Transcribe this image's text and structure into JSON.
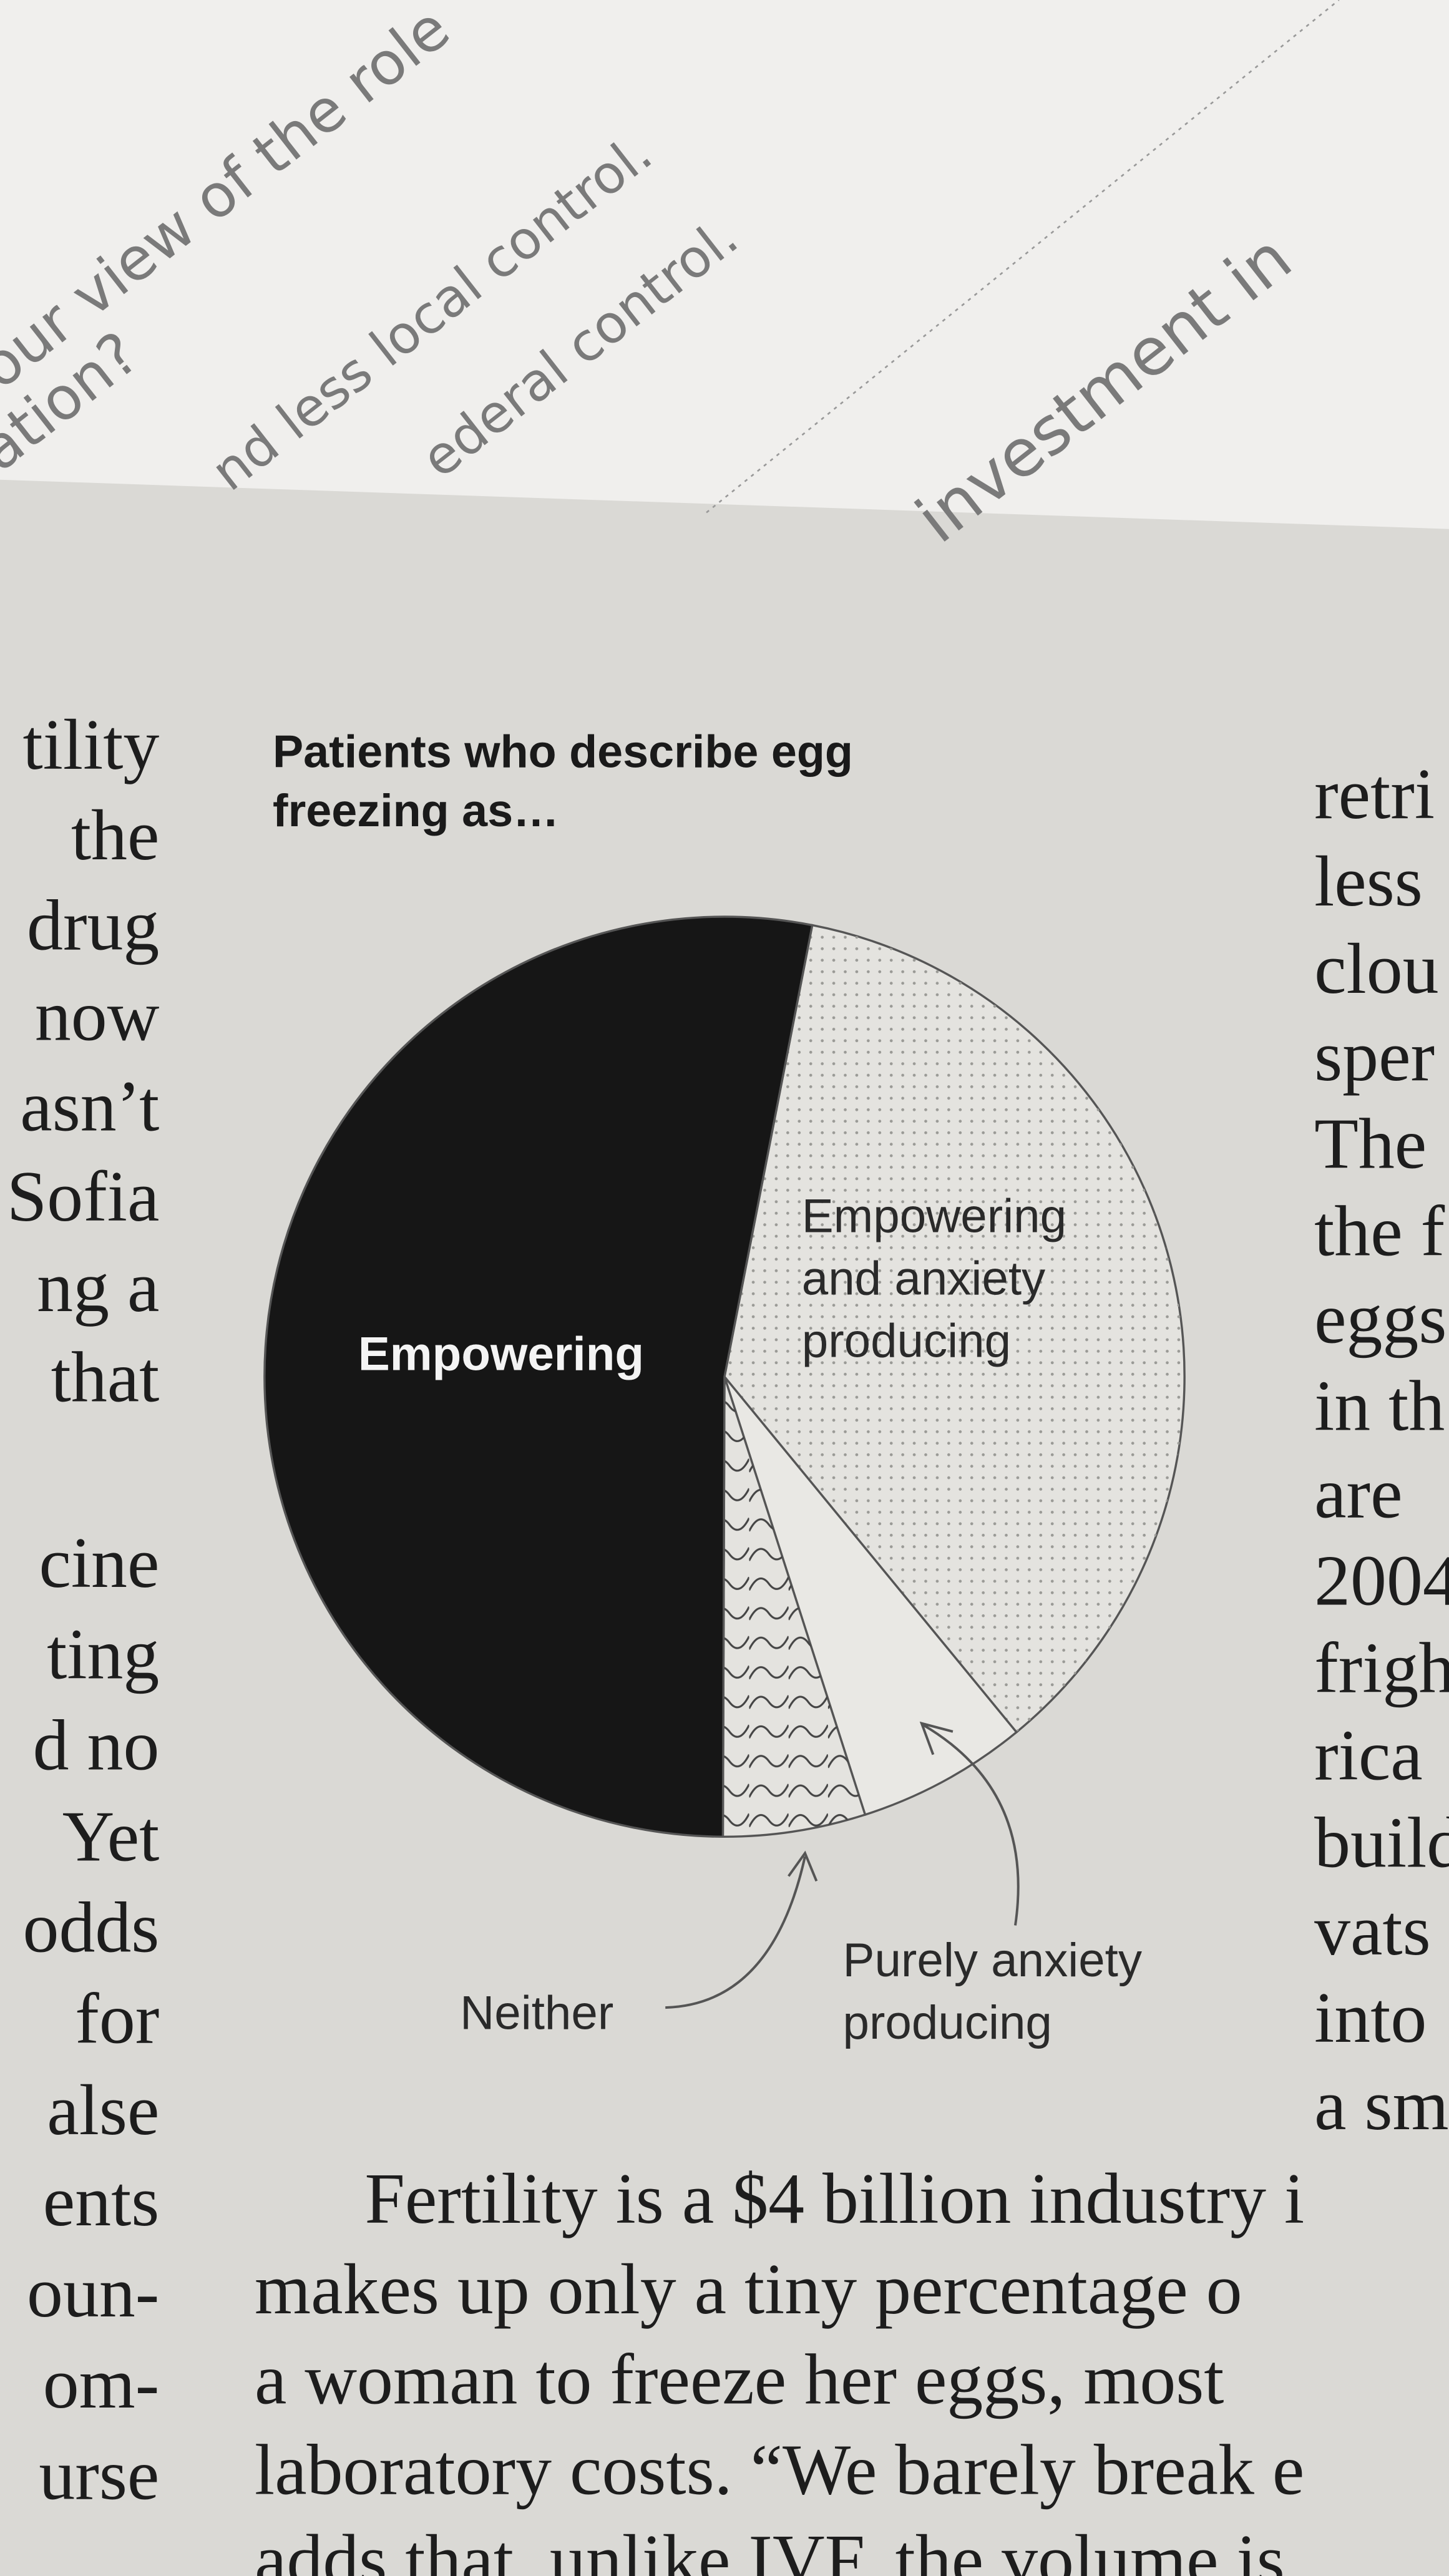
{
  "chart_data": {
    "type": "pie",
    "title": "Patients who describe egg freezing as…",
    "categories": [
      "Empowering and anxiety producing",
      "Purely anxiety producing",
      "Neither",
      "Empowering"
    ],
    "values": [
      36,
      6,
      5,
      53
    ],
    "colors": [
      "#e4e3df",
      "#e9e8e4",
      "#e4e3df",
      "#161616"
    ],
    "patterns": [
      "dots",
      "none",
      "waves",
      "none"
    ]
  },
  "background_paper": [
    "our view of the role",
    "ation?",
    "nd less local control.",
    "ederal control.",
    "investment in"
  ],
  "article": {
    "left_column": [
      "tility",
      "the",
      "drug",
      "now",
      "asn’t",
      "Sofia",
      "ng a",
      "that",
      "cine",
      "ting",
      "d no",
      "Yet",
      "odds",
      "for",
      "alse",
      "ents",
      "oun-",
      "om-",
      "urse"
    ],
    "right_column": [
      "retri",
      "less",
      "clou",
      "sper",
      "The",
      "the f",
      "eggs",
      "in th",
      "are",
      "2004",
      "frigh",
      "rica",
      "build",
      "vats",
      "into",
      "a sm"
    ],
    "body": [
      "Fertility is a $4 billion industry i",
      "makes up only a tiny percentage o",
      "a woman to freeze her eggs, most",
      "laboratory costs. “We barely break e",
      "adds that, unlike IVF, the volume is"
    ]
  }
}
